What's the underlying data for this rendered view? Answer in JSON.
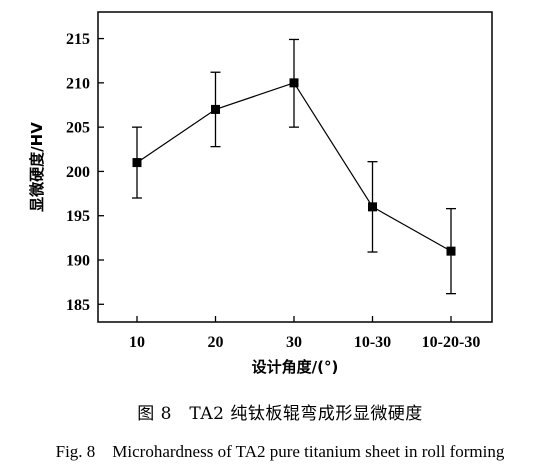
{
  "chart_data": {
    "type": "line",
    "title": "",
    "xlabel": "设计角度/(°)",
    "ylabel": "显微硬度/HV",
    "categories": [
      "10",
      "20",
      "30",
      "10-30",
      "10-20-30"
    ],
    "series": [
      {
        "values": [
          201,
          207,
          210,
          196,
          191
        ],
        "error_low": [
          197,
          202.8,
          205,
          190.9,
          186.2
        ],
        "error_high": [
          205,
          211.2,
          214.9,
          201.1,
          195.8
        ],
        "marker": "square",
        "color": "#000000"
      }
    ],
    "ylim": [
      183,
      218
    ],
    "yticks": [
      185,
      190,
      195,
      200,
      205,
      210,
      215
    ],
    "grid": false,
    "legend": "none"
  },
  "caption": {
    "cn": "图 8　TA2 纯钛板辊弯成形显微硬度",
    "en": "Fig. 8　Microhardness of TA2 pure titanium sheet in roll forming"
  }
}
